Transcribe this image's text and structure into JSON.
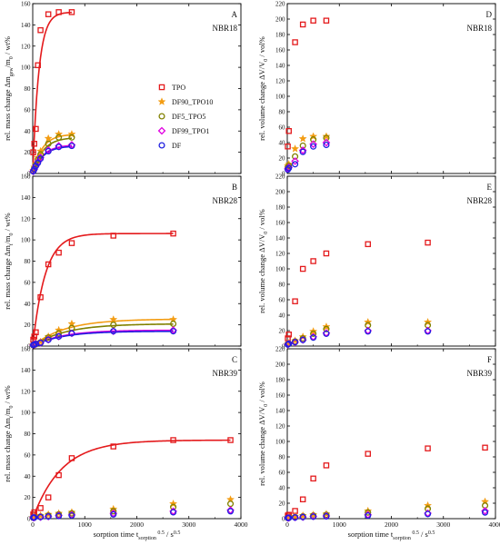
{
  "figure": {
    "x_axis_label": "sorption time t",
    "x_axis_sub": "sorption",
    "x_axis_sup": "0.5",
    "x_axis_unit": "/ s",
    "x_axis_unit_sup": "0.5"
  },
  "legend": {
    "placement": "inside panel A, right-middle",
    "entries": [
      {
        "name": "TPO",
        "color": "#e41a1c",
        "marker": "square"
      },
      {
        "name": "DF90_TPO10",
        "color": "#f39c12",
        "marker": "star"
      },
      {
        "name": "DF5_TPO5",
        "color": "#808000",
        "marker": "circle"
      },
      {
        "name": "DF99_TPO1",
        "color": "#e100e1",
        "marker": "diamond"
      },
      {
        "name": "DF",
        "color": "#1f1fe0",
        "marker": "circle"
      }
    ]
  },
  "chart_data": [
    {
      "panel": "A",
      "label": "NBR18",
      "type": "scatter",
      "ylabel": "rel. mass change Δm_gew/m_0 / wt%",
      "xlim": [
        0,
        4000
      ],
      "ylim": [
        0,
        160
      ],
      "xticks": [
        0,
        1000,
        2000,
        3000,
        4000
      ],
      "yticks": [
        0,
        20,
        40,
        60,
        80,
        100,
        120,
        140,
        160
      ],
      "series": [
        {
          "name": "TPO",
          "x": [
            10,
            30,
            60,
            100,
            150,
            300,
            500,
            750
          ],
          "y": [
            20,
            28,
            42,
            102,
            135,
            150,
            152,
            152
          ],
          "fit": {
            "a": 152,
            "k": 0.0085
          }
        },
        {
          "name": "DF90_TPO10",
          "x": [
            10,
            30,
            60,
            100,
            150,
            300,
            500,
            750
          ],
          "y": [
            3,
            6,
            9,
            15,
            21,
            33,
            37,
            37
          ],
          "fit": {
            "a": 37,
            "k": 0.0055
          }
        },
        {
          "name": "DF5_TPO5",
          "x": [
            10,
            30,
            60,
            100,
            150,
            300,
            500,
            750
          ],
          "y": [
            2,
            5,
            8,
            13,
            18,
            28,
            34,
            34
          ],
          "fit": {
            "a": 34,
            "k": 0.005
          }
        },
        {
          "name": "DF99_TPO1",
          "x": [
            10,
            30,
            60,
            100,
            150,
            300,
            500,
            750
          ],
          "y": [
            2,
            4,
            7,
            11,
            15,
            22,
            26,
            27
          ],
          "fit": {
            "a": 27,
            "k": 0.005
          }
        },
        {
          "name": "DF",
          "x": [
            10,
            30,
            60,
            100,
            150,
            300,
            500,
            750
          ],
          "y": [
            2,
            4,
            7,
            10,
            14,
            21,
            25,
            26
          ],
          "fit": {
            "a": 26,
            "k": 0.005
          }
        }
      ]
    },
    {
      "panel": "D",
      "label": "NBR18",
      "type": "scatter",
      "ylabel": "rel. volume change ΔV/V_0 / vol%",
      "xlim": [
        0,
        4000
      ],
      "ylim": [
        0,
        220
      ],
      "xticks": [
        0,
        1000,
        2000,
        3000,
        4000
      ],
      "yticks": [
        0,
        20,
        40,
        60,
        80,
        100,
        120,
        140,
        160,
        180,
        200,
        220
      ],
      "series": [
        {
          "name": "TPO",
          "x": [
            10,
            30,
            150,
            300,
            500,
            750
          ],
          "y": [
            35,
            55,
            170,
            193,
            198,
            198
          ]
        },
        {
          "name": "DF90_TPO10",
          "x": [
            10,
            30,
            150,
            300,
            500,
            750
          ],
          "y": [
            10,
            12,
            32,
            45,
            48,
            48
          ]
        },
        {
          "name": "DF5_TPO5",
          "x": [
            10,
            30,
            150,
            300,
            500,
            750
          ],
          "y": [
            8,
            10,
            22,
            36,
            44,
            46
          ]
        },
        {
          "name": "DF99_TPO1",
          "x": [
            10,
            30,
            150,
            300,
            500,
            750
          ],
          "y": [
            6,
            8,
            16,
            30,
            38,
            40
          ]
        },
        {
          "name": "DF",
          "x": [
            10,
            30,
            150,
            300,
            500,
            750
          ],
          "y": [
            5,
            7,
            12,
            28,
            35,
            37
          ]
        }
      ]
    },
    {
      "panel": "B",
      "label": "NBR28",
      "type": "scatter",
      "ylabel": "rel. mass change Δm_t/m_0 / wt%",
      "xlim": [
        0,
        4000
      ],
      "ylim": [
        0,
        160
      ],
      "xticks": [
        0,
        1000,
        2000,
        3000,
        4000
      ],
      "yticks": [
        0,
        20,
        40,
        60,
        80,
        100,
        120,
        140,
        160
      ],
      "series": [
        {
          "name": "TPO",
          "x": [
            10,
            30,
            60,
            150,
            300,
            500,
            750,
            1550,
            2700
          ],
          "y": [
            6,
            9,
            13,
            46,
            77,
            88,
            97,
            104,
            106
          ],
          "fit": {
            "a": 106,
            "k": 0.0042
          }
        },
        {
          "name": "DF90_TPO10",
          "x": [
            10,
            30,
            60,
            150,
            300,
            500,
            750,
            1550,
            2700
          ],
          "y": [
            1,
            1.5,
            2,
            4,
            9,
            15,
            21,
            25,
            25
          ],
          "fit": {
            "a": 25.5,
            "k": 0.0016
          }
        },
        {
          "name": "DF5_TPO5",
          "x": [
            10,
            30,
            60,
            150,
            300,
            500,
            750,
            1550,
            2700
          ],
          "y": [
            1,
            1.5,
            2,
            3.5,
            8,
            12,
            17,
            20,
            21
          ],
          "fit": {
            "a": 21,
            "k": 0.0016
          }
        },
        {
          "name": "DF99_TPO1",
          "x": [
            10,
            30,
            60,
            150,
            300,
            500,
            750,
            1550,
            2700
          ],
          "y": [
            1,
            1.5,
            2,
            3,
            6,
            9,
            12,
            14,
            15
          ],
          "fit": {
            "a": 15,
            "k": 0.0018
          }
        },
        {
          "name": "DF",
          "x": [
            10,
            30,
            60,
            150,
            300,
            500,
            750,
            1550,
            2700
          ],
          "y": [
            1,
            1.5,
            2,
            3,
            6,
            9,
            12,
            14,
            14
          ],
          "fit": {
            "a": 14,
            "k": 0.0018
          }
        }
      ]
    },
    {
      "panel": "E",
      "label": "NBR28",
      "type": "scatter",
      "ylabel": "rel. volume change ΔV/V_0 / vol%",
      "xlim": [
        0,
        4000
      ],
      "ylim": [
        0,
        220
      ],
      "xticks": [
        0,
        1000,
        2000,
        3000,
        4000
      ],
      "yticks": [
        0,
        20,
        40,
        60,
        80,
        100,
        120,
        140,
        160,
        180,
        200,
        220
      ],
      "series": [
        {
          "name": "TPO",
          "x": [
            10,
            30,
            150,
            300,
            500,
            750,
            1550,
            2700
          ],
          "y": [
            10,
            15,
            58,
            100,
            110,
            120,
            132,
            134
          ]
        },
        {
          "name": "DF90_TPO10",
          "x": [
            10,
            30,
            150,
            300,
            500,
            750,
            1550,
            2700
          ],
          "y": [
            3,
            4,
            7,
            12,
            19,
            25,
            31,
            31
          ]
        },
        {
          "name": "DF5_TPO5",
          "x": [
            10,
            30,
            150,
            300,
            500,
            750,
            1550,
            2700
          ],
          "y": [
            2,
            3,
            6,
            10,
            16,
            22,
            27,
            27
          ]
        },
        {
          "name": "DF99_TPO1",
          "x": [
            10,
            30,
            150,
            300,
            500,
            750,
            1550,
            2700
          ],
          "y": [
            2,
            3,
            5,
            8,
            12,
            17,
            20,
            20
          ]
        },
        {
          "name": "DF",
          "x": [
            10,
            30,
            150,
            300,
            500,
            750,
            1550,
            2700
          ],
          "y": [
            2,
            3,
            5,
            8,
            11,
            16,
            19,
            19
          ]
        }
      ]
    },
    {
      "panel": "C",
      "label": "NBR39",
      "type": "scatter",
      "ylabel": "rel. mass change Δm_t/m_0 / wt%",
      "xlim": [
        0,
        4000
      ],
      "ylim": [
        0,
        160
      ],
      "xticks": [
        0,
        1000,
        2000,
        3000,
        4000
      ],
      "yticks": [
        0,
        20,
        40,
        60,
        80,
        100,
        120,
        140,
        160
      ],
      "series": [
        {
          "name": "TPO",
          "x": [
            10,
            30,
            150,
            300,
            500,
            750,
            1550,
            2700,
            3800
          ],
          "y": [
            4,
            6,
            10,
            20,
            41,
            57,
            68,
            74,
            74
          ],
          "fit": {
            "a": 74,
            "k": 0.0018
          }
        },
        {
          "name": "DF90_TPO10",
          "x": [
            10,
            30,
            150,
            300,
            500,
            750,
            1550,
            2700,
            3800
          ],
          "y": [
            1,
            2,
            3,
            4,
            5,
            6,
            9,
            14,
            18
          ]
        },
        {
          "name": "DF5_TPO5",
          "x": [
            10,
            30,
            150,
            300,
            500,
            750,
            1550,
            2700,
            3800
          ],
          "y": [
            1,
            1.5,
            2,
            3,
            4,
            5,
            7,
            11,
            14
          ]
        },
        {
          "name": "DF99_TPO1",
          "x": [
            10,
            30,
            150,
            300,
            500,
            750,
            1550,
            2700,
            3800
          ],
          "y": [
            1,
            1,
            1.5,
            2,
            3,
            3.5,
            5,
            7,
            8
          ]
        },
        {
          "name": "DF",
          "x": [
            10,
            30,
            150,
            300,
            500,
            750,
            1550,
            2700,
            3800
          ],
          "y": [
            1,
            1,
            1.5,
            2,
            2.5,
            3,
            4,
            6,
            7
          ]
        }
      ]
    },
    {
      "panel": "F",
      "label": "NBR39",
      "type": "scatter",
      "ylabel": "rel. volume change ΔV/V_0 / vol%",
      "xlim": [
        0,
        4000
      ],
      "ylim": [
        0,
        220
      ],
      "xticks": [
        0,
        1000,
        2000,
        3000,
        4000
      ],
      "yticks": [
        0,
        20,
        40,
        60,
        80,
        100,
        120,
        140,
        160,
        180,
        200,
        220
      ],
      "series": [
        {
          "name": "TPO",
          "x": [
            10,
            30,
            150,
            300,
            500,
            750,
            1550,
            2700,
            3800
          ],
          "y": [
            4,
            5,
            10,
            25,
            52,
            69,
            84,
            91,
            92
          ]
        },
        {
          "name": "DF90_TPO10",
          "x": [
            10,
            30,
            150,
            300,
            500,
            750,
            1550,
            2700,
            3800
          ],
          "y": [
            1,
            2,
            3,
            4,
            5,
            6,
            10,
            17,
            22
          ]
        },
        {
          "name": "DF5_TPO5",
          "x": [
            10,
            30,
            150,
            300,
            500,
            750,
            1550,
            2700,
            3800
          ],
          "y": [
            1,
            1.5,
            2,
            3,
            4,
            5,
            8,
            13,
            17
          ]
        },
        {
          "name": "DF99_TPO1",
          "x": [
            10,
            30,
            150,
            300,
            500,
            750,
            1550,
            2700,
            3800
          ],
          "y": [
            1,
            1,
            1.5,
            2,
            3,
            3.5,
            5,
            7,
            10
          ]
        },
        {
          "name": "DF",
          "x": [
            10,
            30,
            150,
            300,
            500,
            750,
            1550,
            2700,
            3800
          ],
          "y": [
            1,
            1,
            1.5,
            2,
            2.5,
            3,
            4,
            6,
            8
          ]
        }
      ]
    }
  ]
}
